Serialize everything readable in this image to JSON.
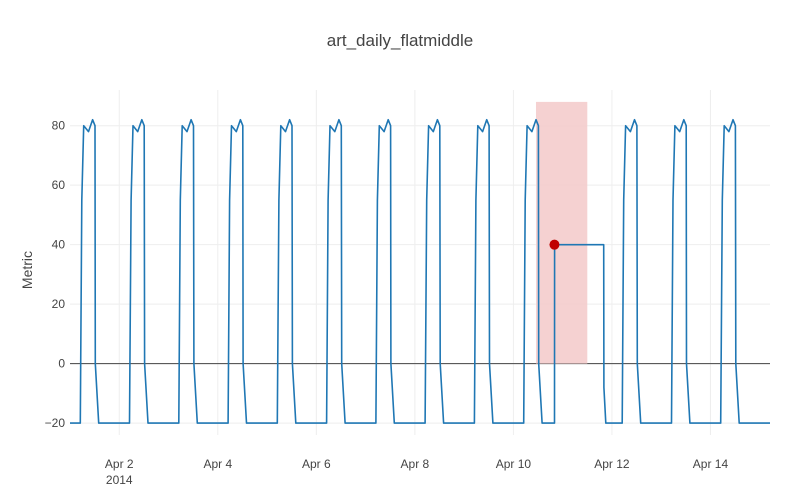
{
  "chart_data": {
    "type": "line",
    "title": "art_daily_flatmiddle",
    "xlabel": "",
    "ylabel": "Metric",
    "xlim": [
      "2014-04-01 00:00",
      "2014-04-15 05:00"
    ],
    "ylim": [
      -24,
      92
    ],
    "x_ticks": [
      {
        "date": "2014-04-02",
        "label": "Apr 2",
        "sublabel": "2014"
      },
      {
        "date": "2014-04-04",
        "label": "Apr 4"
      },
      {
        "date": "2014-04-06",
        "label": "Apr 6"
      },
      {
        "date": "2014-04-08",
        "label": "Apr 8"
      },
      {
        "date": "2014-04-10",
        "label": "Apr 10"
      },
      {
        "date": "2014-04-12",
        "label": "Apr 12"
      },
      {
        "date": "2014-04-14",
        "label": "Apr 14"
      }
    ],
    "y_ticks": [
      -20,
      0,
      20,
      40,
      60,
      80
    ],
    "grid": true,
    "zero_line": true,
    "series": [
      {
        "color": "#1f77b4",
        "values": [
          [
            "2014-04-01 00:00",
            -20
          ],
          [
            "2014-04-01 05:00",
            -20
          ],
          [
            "2014-04-01 05:45",
            55
          ],
          [
            "2014-04-01 06:40",
            80
          ],
          [
            "2014-04-01 09:00",
            78
          ],
          [
            "2014-04-01 11:00",
            82
          ],
          [
            "2014-04-01 12:10",
            80
          ],
          [
            "2014-04-01 12:20",
            0
          ],
          [
            "2014-04-01 14:00",
            -20
          ],
          [
            "2014-04-02 05:00",
            -20
          ],
          [
            "2014-04-02 05:45",
            55
          ],
          [
            "2014-04-02 06:40",
            80
          ],
          [
            "2014-04-02 09:00",
            78
          ],
          [
            "2014-04-02 11:00",
            82
          ],
          [
            "2014-04-02 12:10",
            80
          ],
          [
            "2014-04-02 12:20",
            0
          ],
          [
            "2014-04-02 14:00",
            -20
          ],
          [
            "2014-04-03 05:00",
            -20
          ],
          [
            "2014-04-03 05:45",
            55
          ],
          [
            "2014-04-03 06:40",
            80
          ],
          [
            "2014-04-03 09:00",
            78
          ],
          [
            "2014-04-03 11:00",
            82
          ],
          [
            "2014-04-03 12:10",
            80
          ],
          [
            "2014-04-03 12:20",
            0
          ],
          [
            "2014-04-03 14:00",
            -20
          ],
          [
            "2014-04-04 05:00",
            -20
          ],
          [
            "2014-04-04 05:45",
            55
          ],
          [
            "2014-04-04 06:40",
            80
          ],
          [
            "2014-04-04 09:00",
            78
          ],
          [
            "2014-04-04 11:00",
            82
          ],
          [
            "2014-04-04 12:10",
            80
          ],
          [
            "2014-04-04 12:20",
            0
          ],
          [
            "2014-04-04 14:00",
            -20
          ],
          [
            "2014-04-05 05:00",
            -20
          ],
          [
            "2014-04-05 05:45",
            55
          ],
          [
            "2014-04-05 06:40",
            80
          ],
          [
            "2014-04-05 09:00",
            78
          ],
          [
            "2014-04-05 11:00",
            82
          ],
          [
            "2014-04-05 12:10",
            80
          ],
          [
            "2014-04-05 12:20",
            0
          ],
          [
            "2014-04-05 14:00",
            -20
          ],
          [
            "2014-04-06 05:00",
            -20
          ],
          [
            "2014-04-06 05:45",
            55
          ],
          [
            "2014-04-06 06:40",
            80
          ],
          [
            "2014-04-06 09:00",
            78
          ],
          [
            "2014-04-06 11:00",
            82
          ],
          [
            "2014-04-06 12:10",
            80
          ],
          [
            "2014-04-06 12:20",
            0
          ],
          [
            "2014-04-06 14:00",
            -20
          ],
          [
            "2014-04-07 05:00",
            -20
          ],
          [
            "2014-04-07 05:45",
            55
          ],
          [
            "2014-04-07 06:40",
            80
          ],
          [
            "2014-04-07 09:00",
            78
          ],
          [
            "2014-04-07 11:00",
            82
          ],
          [
            "2014-04-07 12:10",
            80
          ],
          [
            "2014-04-07 12:20",
            0
          ],
          [
            "2014-04-07 14:00",
            -20
          ],
          [
            "2014-04-08 05:00",
            -20
          ],
          [
            "2014-04-08 05:45",
            55
          ],
          [
            "2014-04-08 06:40",
            80
          ],
          [
            "2014-04-08 09:00",
            78
          ],
          [
            "2014-04-08 11:00",
            82
          ],
          [
            "2014-04-08 12:10",
            80
          ],
          [
            "2014-04-08 12:20",
            0
          ],
          [
            "2014-04-08 14:00",
            -20
          ],
          [
            "2014-04-09 05:00",
            -20
          ],
          [
            "2014-04-09 05:45",
            55
          ],
          [
            "2014-04-09 06:40",
            80
          ],
          [
            "2014-04-09 09:00",
            78
          ],
          [
            "2014-04-09 11:00",
            82
          ],
          [
            "2014-04-09 12:10",
            80
          ],
          [
            "2014-04-09 12:20",
            0
          ],
          [
            "2014-04-09 14:00",
            -20
          ],
          [
            "2014-04-10 05:00",
            -20
          ],
          [
            "2014-04-10 05:45",
            55
          ],
          [
            "2014-04-10 06:40",
            80
          ],
          [
            "2014-04-10 09:00",
            78
          ],
          [
            "2014-04-10 11:00",
            82
          ],
          [
            "2014-04-10 12:10",
            80
          ],
          [
            "2014-04-10 12:20",
            0
          ],
          [
            "2014-04-10 14:00",
            -20
          ],
          [
            "2014-04-10 20:00",
            -20
          ],
          [
            "2014-04-10 20:05",
            40
          ],
          [
            "2014-04-11 20:00",
            40
          ],
          [
            "2014-04-11 20:05",
            -8
          ],
          [
            "2014-04-11 21:00",
            -20
          ],
          [
            "2014-04-12 05:00",
            -20
          ],
          [
            "2014-04-12 05:45",
            55
          ],
          [
            "2014-04-12 06:40",
            80
          ],
          [
            "2014-04-12 09:00",
            78
          ],
          [
            "2014-04-12 11:00",
            82
          ],
          [
            "2014-04-12 12:10",
            80
          ],
          [
            "2014-04-12 12:20",
            0
          ],
          [
            "2014-04-12 14:00",
            -20
          ],
          [
            "2014-04-13 05:00",
            -20
          ],
          [
            "2014-04-13 05:45",
            55
          ],
          [
            "2014-04-13 06:40",
            80
          ],
          [
            "2014-04-13 09:00",
            78
          ],
          [
            "2014-04-13 11:00",
            82
          ],
          [
            "2014-04-13 12:10",
            80
          ],
          [
            "2014-04-13 12:20",
            0
          ],
          [
            "2014-04-13 14:00",
            -20
          ],
          [
            "2014-04-14 05:00",
            -20
          ],
          [
            "2014-04-14 05:45",
            55
          ],
          [
            "2014-04-14 06:40",
            80
          ],
          [
            "2014-04-14 09:00",
            78
          ],
          [
            "2014-04-14 11:00",
            82
          ],
          [
            "2014-04-14 12:10",
            80
          ],
          [
            "2014-04-14 12:20",
            0
          ],
          [
            "2014-04-14 14:00",
            -20
          ],
          [
            "2014-04-15 05:00",
            -20
          ]
        ]
      }
    ],
    "anomaly_window": {
      "start": "2014-04-10 11:00",
      "end": "2014-04-11 12:00",
      "color": "#f4cccc"
    },
    "anomaly_point": {
      "x": "2014-04-10 20:00",
      "y": 40,
      "color": "#c00000"
    }
  }
}
